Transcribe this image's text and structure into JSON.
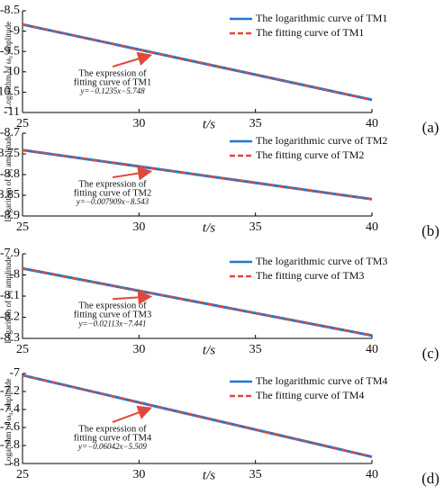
{
  "chart_data": [
    {
      "type": "line",
      "panel_label": "(a)",
      "xlabel": "t/s",
      "ylabel": "Logarithm of ω₀ amplitude",
      "x": [
        25,
        40
      ],
      "xlim": [
        25,
        40
      ],
      "xticks": [
        25,
        30,
        35,
        40
      ],
      "ylim": [
        -11,
        -8.5
      ],
      "yticks": [
        -8.5,
        -9,
        -9.5,
        -10,
        -10.5,
        -11
      ],
      "series": [
        {
          "name": "The logarithmic curve of TM1",
          "color": "#1f77d0",
          "dash": false,
          "values": [
            -8.8355,
            -10.688
          ]
        },
        {
          "name": "The fitting curve of TM1",
          "color": "#e0483a",
          "dash": true,
          "values": [
            -8.8355,
            -10.688
          ]
        }
      ],
      "annotation": [
        "The expression of",
        "fitting curve of TM1",
        "y=−0.1235x−5.748"
      ]
    },
    {
      "type": "line",
      "panel_label": "(b)",
      "xlabel": "t/s",
      "ylabel": "Logarithm of ω₀ amplitude",
      "x": [
        25,
        40
      ],
      "xlim": [
        25,
        40
      ],
      "xticks": [
        25,
        30,
        35,
        40
      ],
      "ylim": [
        -8.9,
        -8.7
      ],
      "yticks": [
        -8.7,
        -8.75,
        -8.8,
        -8.85,
        -8.9
      ],
      "series": [
        {
          "name": "The logarithmic curve of TM2",
          "color": "#1f77d0",
          "dash": false,
          "values": [
            -8.7407,
            -8.8594
          ]
        },
        {
          "name": "The fitting curve of TM2",
          "color": "#e0483a",
          "dash": true,
          "values": [
            -8.7407,
            -8.8594
          ]
        }
      ],
      "annotation": [
        "The expression of",
        "fitting curve of TM2",
        "y=−0.007909x−8.543"
      ]
    },
    {
      "type": "line",
      "panel_label": "(c)",
      "xlabel": "t/s",
      "ylabel": "Logarithm of ω₀ amplitude",
      "x": [
        25,
        40
      ],
      "xlim": [
        25,
        40
      ],
      "xticks": [
        25,
        30,
        35,
        40
      ],
      "ylim": [
        -8.3,
        -7.9
      ],
      "yticks": [
        -7.9,
        -8,
        -8.1,
        -8.2,
        -8.3
      ],
      "series": [
        {
          "name": "The logarithmic curve of TM3",
          "color": "#1f77d0",
          "dash": false,
          "values": [
            -7.9693,
            -8.2862
          ]
        },
        {
          "name": "The fitting curve of TM3",
          "color": "#e0483a",
          "dash": true,
          "values": [
            -7.9693,
            -8.2862
          ]
        }
      ],
      "annotation": [
        "The expression of",
        "fitting curve of TM3",
        "y=−0.02113x−7.441"
      ]
    },
    {
      "type": "line",
      "panel_label": "(d)",
      "xlabel": "t/s",
      "ylabel": "Logarithm of ω₀ amplitude",
      "x": [
        25,
        40
      ],
      "xlim": [
        25,
        40
      ],
      "xticks": [
        25,
        30,
        35,
        40
      ],
      "ylim": [
        -8,
        -7
      ],
      "yticks": [
        -7,
        -7.2,
        -7.4,
        -7.6,
        -7.8,
        -8
      ],
      "series": [
        {
          "name": "The logarithmic curve of TM4",
          "color": "#1f77d0",
          "dash": false,
          "values": [
            -7.0195,
            -7.9258
          ]
        },
        {
          "name": "The fitting curve of TM4",
          "color": "#e0483a",
          "dash": true,
          "values": [
            -7.0195,
            -7.9258
          ]
        }
      ],
      "annotation": [
        "The expression of",
        "fitting curve of TM4",
        "y=−0.06042x−5.509"
      ]
    }
  ]
}
